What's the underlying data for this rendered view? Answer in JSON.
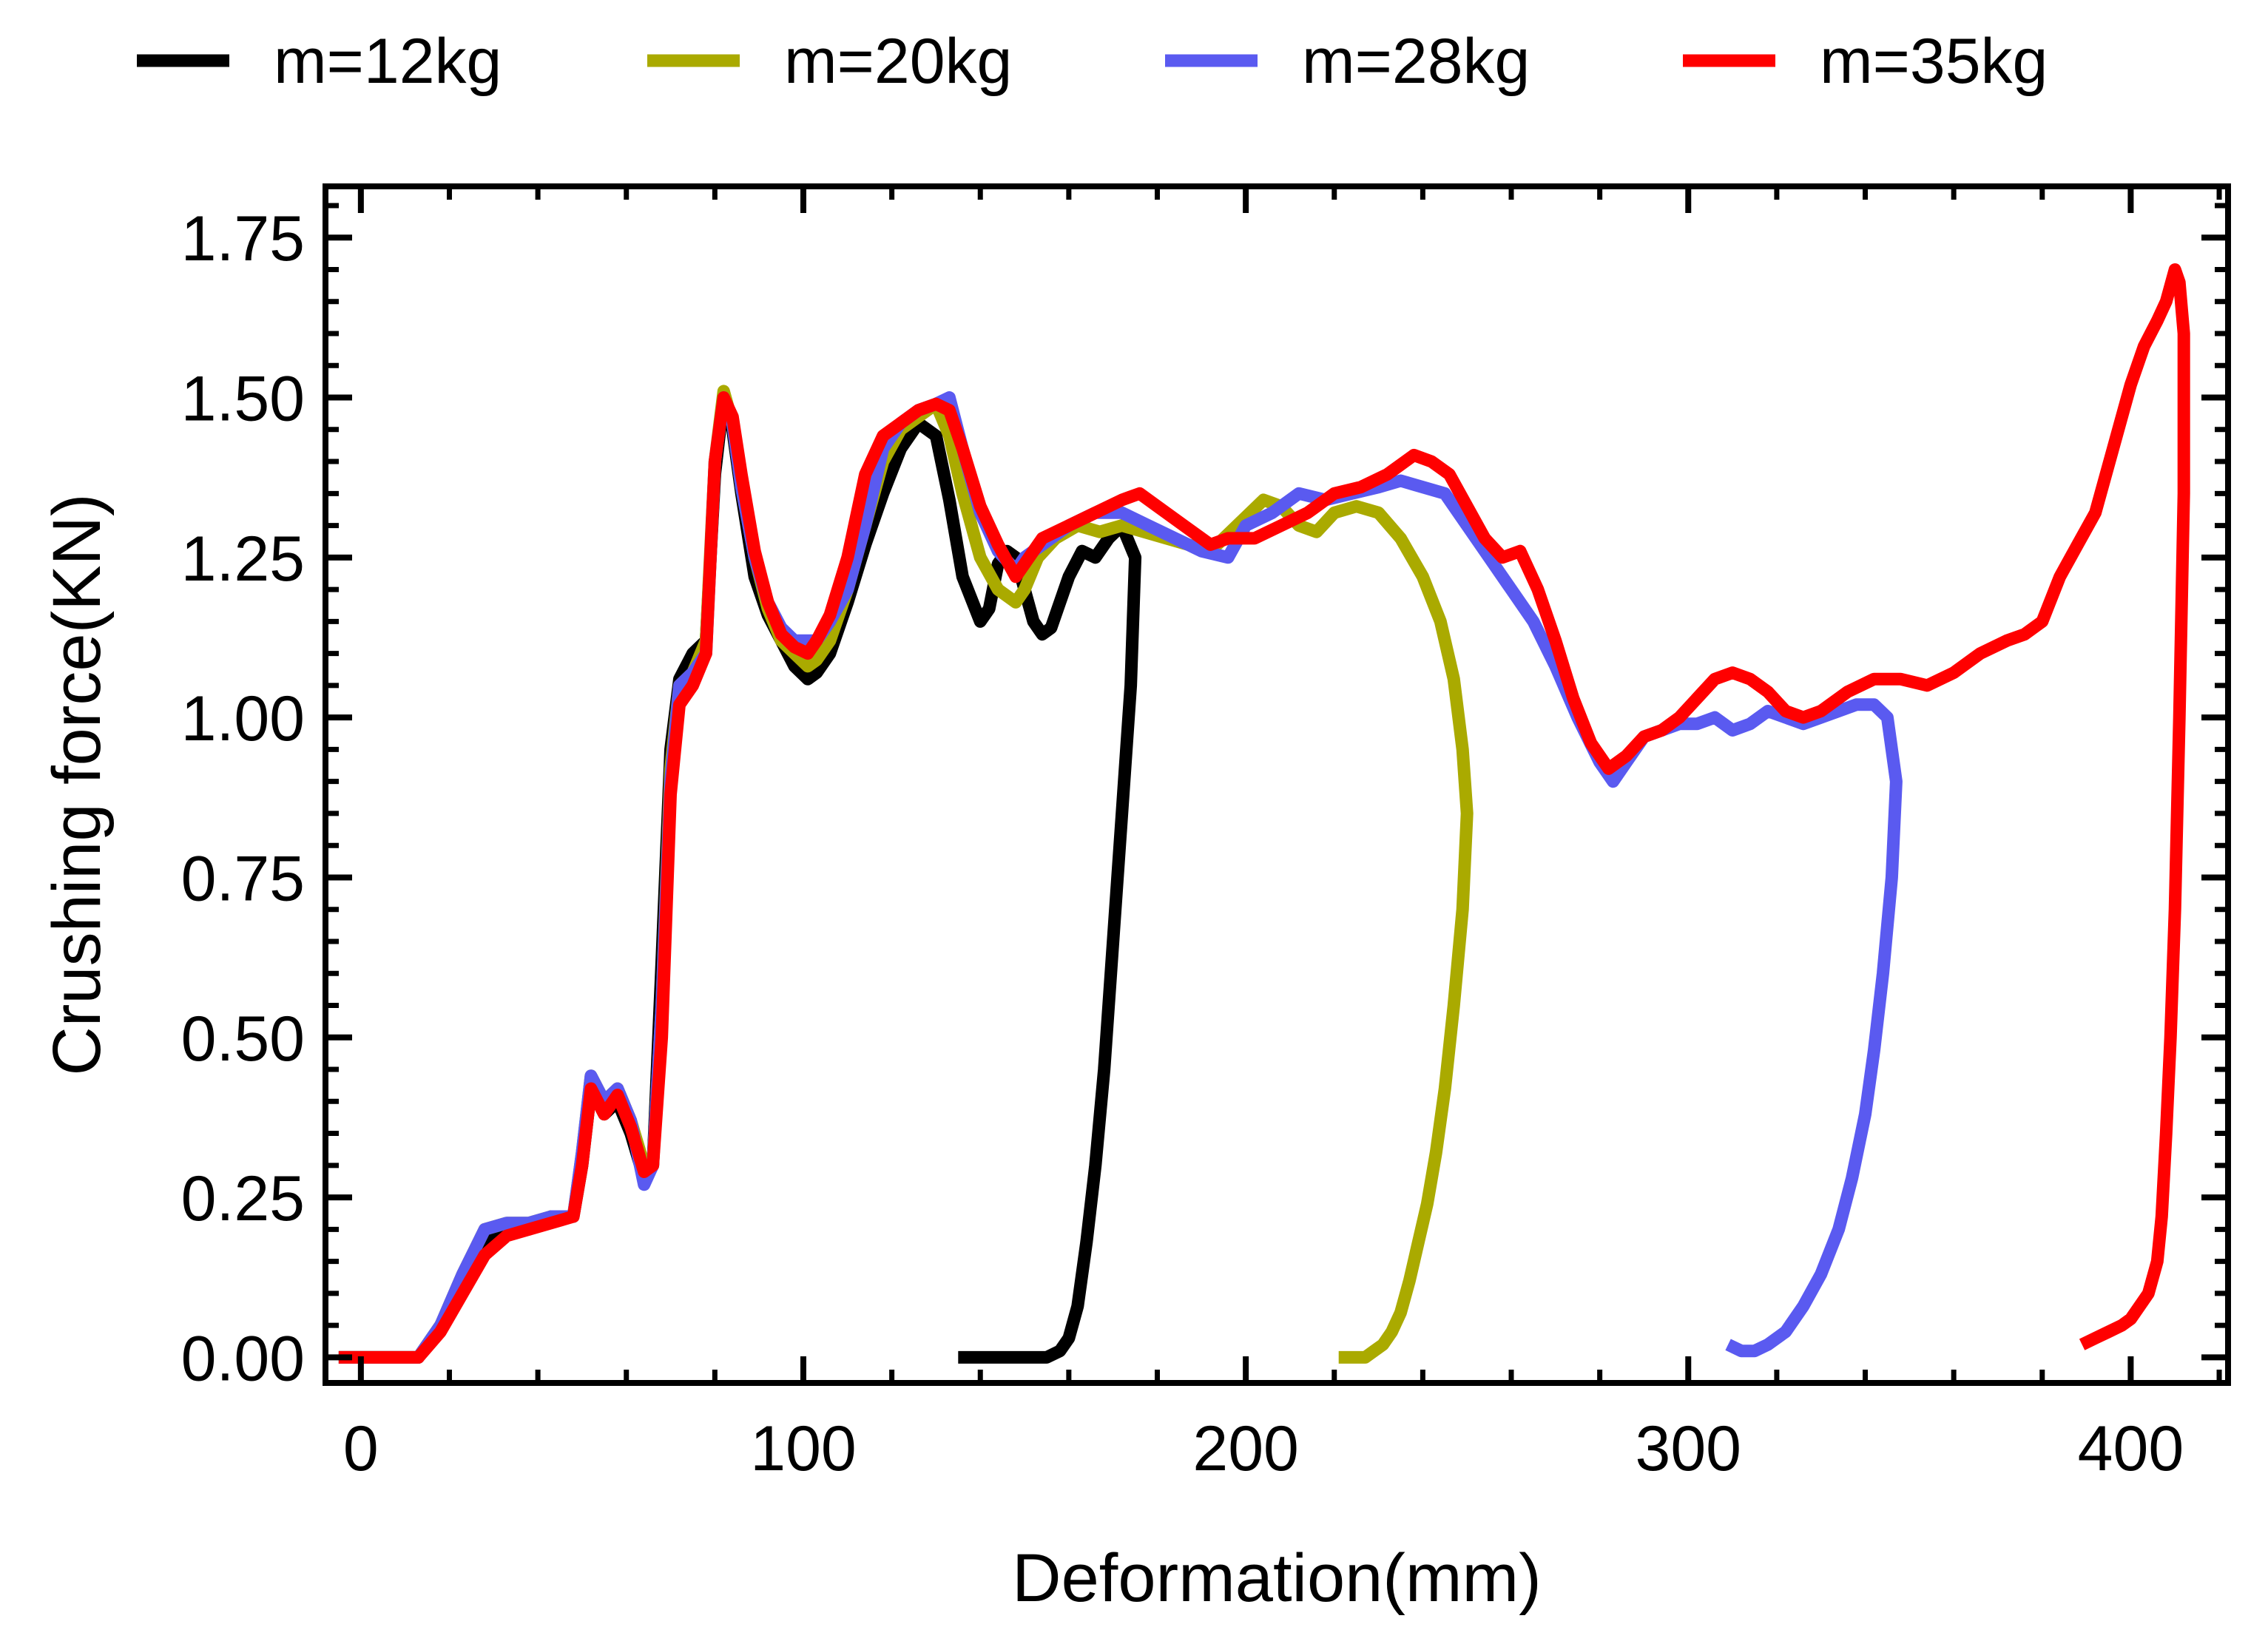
{
  "chart_data": {
    "type": "line",
    "title": "",
    "xlabel": "Deformation(mm)",
    "ylabel": "Crushing force(KN)",
    "xlim": [
      -8,
      422
    ],
    "ylim": [
      -0.04,
      1.83
    ],
    "xticks": [
      0,
      100,
      200,
      300,
      400
    ],
    "xtick_labels": [
      "0",
      "100",
      "200",
      "300",
      "400"
    ],
    "yticks": [
      0.0,
      0.25,
      0.5,
      0.75,
      1.0,
      1.25,
      1.5,
      1.75
    ],
    "ytick_labels": [
      "0.00",
      "0.25",
      "0.50",
      "0.75",
      "1.00",
      "1.25",
      "1.50",
      "1.75"
    ],
    "grid": false,
    "legend_position": "top",
    "series": [
      {
        "name": "m=12kg",
        "color": "#000000",
        "x": [
          -5,
          13,
          18,
          23,
          28,
          33,
          38,
          43,
          48,
          50,
          52,
          55,
          58,
          61,
          64,
          66,
          68,
          70,
          72,
          75,
          78,
          80,
          82,
          84,
          86,
          89,
          92,
          95,
          98,
          101,
          103,
          106,
          110,
          114,
          118,
          122,
          126,
          130,
          133,
          136,
          140,
          142,
          144,
          146,
          148,
          150,
          152,
          154,
          156,
          158,
          160,
          163,
          166,
          169,
          172,
          175,
          174,
          172,
          170,
          168,
          166,
          164,
          162,
          160,
          158,
          155,
          150,
          145,
          140,
          135
        ],
        "y": [
          0.0,
          0.0,
          0.05,
          0.12,
          0.18,
          0.2,
          0.2,
          0.22,
          0.22,
          0.3,
          0.42,
          0.38,
          0.4,
          0.35,
          0.28,
          0.3,
          0.62,
          0.95,
          1.06,
          1.1,
          1.12,
          1.38,
          1.5,
          1.45,
          1.35,
          1.22,
          1.16,
          1.12,
          1.08,
          1.06,
          1.07,
          1.1,
          1.18,
          1.27,
          1.35,
          1.42,
          1.46,
          1.44,
          1.34,
          1.22,
          1.15,
          1.17,
          1.24,
          1.26,
          1.25,
          1.2,
          1.15,
          1.13,
          1.14,
          1.18,
          1.22,
          1.26,
          1.25,
          1.28,
          1.3,
          1.25,
          1.05,
          0.85,
          0.65,
          0.45,
          0.3,
          0.18,
          0.08,
          0.03,
          0.01,
          0.0,
          0.0,
          0.0,
          0.0,
          0.0
        ]
      },
      {
        "name": "m=20kg",
        "color": "#AAAA00",
        "x": [
          -5,
          13,
          18,
          23,
          28,
          33,
          38,
          43,
          48,
          50,
          52,
          55,
          58,
          61,
          64,
          66,
          68,
          70,
          72,
          75,
          78,
          80,
          82,
          84,
          86,
          89,
          92,
          95,
          98,
          101,
          103,
          106,
          110,
          114,
          118,
          122,
          126,
          130,
          133,
          136,
          140,
          144,
          148,
          150,
          153,
          157,
          162,
          167,
          172,
          177,
          182,
          187,
          192,
          198,
          204,
          208,
          212,
          216,
          220,
          225,
          230,
          235,
          240,
          244,
          247,
          249,
          250,
          249,
          247,
          245,
          243,
          241,
          239,
          237,
          235,
          233,
          231,
          229,
          227,
          225,
          223,
          221
        ],
        "y": [
          0.0,
          0.0,
          0.05,
          0.13,
          0.2,
          0.21,
          0.21,
          0.22,
          0.22,
          0.32,
          0.44,
          0.4,
          0.42,
          0.37,
          0.3,
          0.3,
          0.55,
          0.92,
          1.05,
          1.07,
          1.12,
          1.4,
          1.51,
          1.46,
          1.36,
          1.25,
          1.17,
          1.12,
          1.1,
          1.08,
          1.09,
          1.12,
          1.2,
          1.3,
          1.4,
          1.45,
          1.47,
          1.49,
          1.44,
          1.35,
          1.25,
          1.2,
          1.18,
          1.2,
          1.25,
          1.28,
          1.3,
          1.29,
          1.3,
          1.29,
          1.28,
          1.27,
          1.26,
          1.3,
          1.34,
          1.33,
          1.3,
          1.29,
          1.32,
          1.33,
          1.32,
          1.28,
          1.22,
          1.15,
          1.06,
          0.95,
          0.85,
          0.7,
          0.55,
          0.42,
          0.32,
          0.24,
          0.18,
          0.12,
          0.07,
          0.04,
          0.02,
          0.01,
          0.0,
          0.0,
          0.0,
          0.0
        ]
      },
      {
        "name": "m=28kg",
        "color": "#5A5AF0",
        "x": [
          -5,
          13,
          18,
          23,
          28,
          33,
          38,
          43,
          48,
          50,
          52,
          55,
          58,
          61,
          64,
          66,
          68,
          70,
          72,
          75,
          78,
          80,
          82,
          84,
          86,
          89,
          92,
          95,
          98,
          101,
          103,
          106,
          110,
          114,
          118,
          122,
          126,
          130,
          133,
          136,
          140,
          144,
          148,
          150,
          154,
          160,
          166,
          172,
          178,
          184,
          190,
          196,
          200,
          206,
          212,
          218,
          224,
          230,
          235,
          240,
          245,
          250,
          255,
          260,
          265,
          270,
          275,
          280,
          283,
          286,
          290,
          294,
          298,
          302,
          306,
          310,
          314,
          318,
          322,
          326,
          330,
          334,
          338,
          342,
          345,
          347,
          346,
          344,
          342,
          340,
          337,
          334,
          330,
          326,
          322,
          318,
          315,
          312,
          309
        ],
        "y": [
          0.0,
          0.0,
          0.05,
          0.13,
          0.2,
          0.21,
          0.21,
          0.22,
          0.22,
          0.32,
          0.44,
          0.4,
          0.42,
          0.37,
          0.27,
          0.3,
          0.55,
          0.9,
          1.05,
          1.07,
          1.1,
          1.4,
          1.5,
          1.46,
          1.36,
          1.25,
          1.18,
          1.14,
          1.12,
          1.12,
          1.12,
          1.15,
          1.2,
          1.3,
          1.42,
          1.46,
          1.48,
          1.49,
          1.5,
          1.42,
          1.32,
          1.26,
          1.23,
          1.25,
          1.27,
          1.3,
          1.32,
          1.32,
          1.3,
          1.28,
          1.26,
          1.25,
          1.3,
          1.32,
          1.35,
          1.34,
          1.35,
          1.36,
          1.37,
          1.36,
          1.35,
          1.3,
          1.25,
          1.2,
          1.15,
          1.08,
          1.0,
          0.93,
          0.9,
          0.93,
          0.97,
          0.98,
          0.99,
          0.99,
          1.0,
          0.98,
          0.99,
          1.01,
          1.0,
          0.99,
          1.0,
          1.01,
          1.02,
          1.02,
          1.0,
          0.9,
          0.75,
          0.6,
          0.48,
          0.38,
          0.28,
          0.2,
          0.13,
          0.08,
          0.04,
          0.02,
          0.01,
          0.01,
          0.02
        ]
      },
      {
        "name": "m=35kg",
        "color": "#FF0000",
        "x": [
          -5,
          13,
          18,
          23,
          28,
          33,
          38,
          43,
          48,
          50,
          52,
          55,
          58,
          61,
          64,
          66,
          68,
          70,
          72,
          75,
          78,
          80,
          82,
          84,
          86,
          89,
          92,
          95,
          98,
          101,
          103,
          106,
          110,
          114,
          118,
          122,
          126,
          130,
          133,
          136,
          140,
          144,
          148,
          150,
          154,
          160,
          166,
          172,
          176,
          180,
          186,
          192,
          196,
          202,
          208,
          214,
          220,
          226,
          232,
          238,
          242,
          246,
          250,
          254,
          258,
          262,
          266,
          270,
          274,
          278,
          282,
          286,
          290,
          294,
          298,
          302,
          306,
          310,
          314,
          318,
          322,
          326,
          330,
          336,
          342,
          348,
          354,
          360,
          366,
          372,
          376,
          380,
          384,
          388,
          392,
          396,
          400,
          403,
          406,
          408,
          410,
          411,
          412,
          412,
          411,
          410,
          409,
          408,
          407,
          406,
          404,
          402,
          400,
          398,
          395,
          392,
          389
        ],
        "y": [
          0.0,
          0.0,
          0.04,
          0.1,
          0.16,
          0.19,
          0.2,
          0.21,
          0.22,
          0.3,
          0.42,
          0.38,
          0.41,
          0.36,
          0.29,
          0.3,
          0.5,
          0.88,
          1.02,
          1.05,
          1.1,
          1.4,
          1.5,
          1.47,
          1.38,
          1.26,
          1.18,
          1.13,
          1.11,
          1.1,
          1.12,
          1.16,
          1.25,
          1.38,
          1.44,
          1.46,
          1.48,
          1.49,
          1.48,
          1.42,
          1.33,
          1.27,
          1.22,
          1.24,
          1.28,
          1.3,
          1.32,
          1.34,
          1.35,
          1.33,
          1.3,
          1.27,
          1.28,
          1.28,
          1.3,
          1.32,
          1.35,
          1.36,
          1.38,
          1.41,
          1.4,
          1.38,
          1.33,
          1.28,
          1.25,
          1.26,
          1.2,
          1.12,
          1.03,
          0.96,
          0.92,
          0.94,
          0.97,
          0.98,
          1.0,
          1.03,
          1.06,
          1.07,
          1.06,
          1.04,
          1.01,
          1.0,
          1.01,
          1.04,
          1.06,
          1.06,
          1.05,
          1.07,
          1.1,
          1.12,
          1.13,
          1.15,
          1.22,
          1.27,
          1.32,
          1.42,
          1.52,
          1.58,
          1.62,
          1.65,
          1.7,
          1.68,
          1.6,
          1.35,
          1.0,
          0.7,
          0.5,
          0.35,
          0.22,
          0.15,
          0.1,
          0.08,
          0.06,
          0.05,
          0.04,
          0.03,
          0.02
        ]
      }
    ]
  }
}
